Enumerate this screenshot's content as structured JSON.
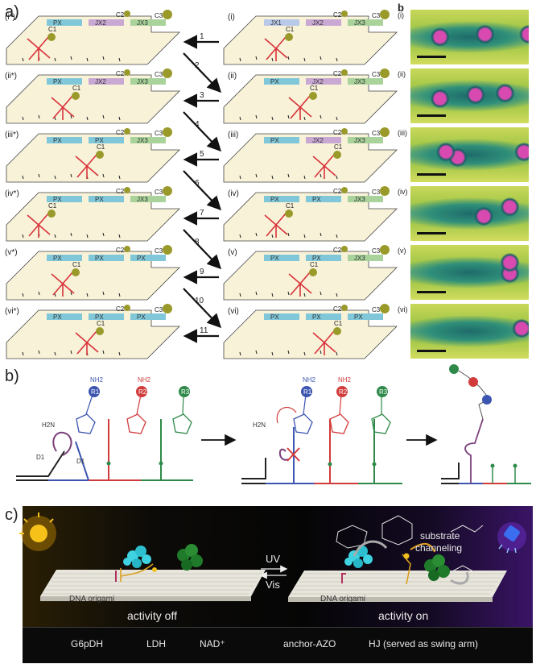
{
  "panel_letters": {
    "a": "a)",
    "b": "b",
    "b_chem": "b)",
    "c": "c)"
  },
  "left_states": [
    "(i*)",
    "(ii*)",
    "(iii*)",
    "(iv*)",
    "(v*)",
    "(vi*)"
  ],
  "right_states": [
    "(i)",
    "(ii)",
    "(iii)",
    "(iv)",
    "(v)",
    "(vi)"
  ],
  "arrow_numbers": [
    "1",
    "2",
    "3",
    "4",
    "5",
    "6",
    "7",
    "8",
    "9",
    "10",
    "11"
  ],
  "track_labels": {
    "left": [
      [
        "PX",
        "JX2",
        "JX3"
      ],
      [
        "PX",
        "JX2",
        "JX3"
      ],
      [
        "PX",
        "PX",
        "JX3"
      ],
      [
        "PX",
        "PX",
        "JX3"
      ],
      [
        "PX",
        "PX",
        "PX"
      ],
      [
        "PX",
        "PX",
        "PX"
      ]
    ],
    "right": [
      [
        "JX1",
        "JX2",
        "JX3"
      ],
      [
        "PX",
        "JX2",
        "JX3"
      ],
      [
        "PX",
        "JX2",
        "JX3"
      ],
      [
        "PX",
        "PX",
        "JX3"
      ],
      [
        "PX",
        "PX",
        "JX3"
      ],
      [
        "PX",
        "PX",
        "PX"
      ]
    ]
  },
  "cargo_labels": {
    "c1": "C1",
    "c2": "C2",
    "c3": "C3"
  },
  "afm_labels": [
    "(i)",
    "(ii)",
    "(iii)",
    "(iv)",
    "(v)",
    "(vi)"
  ],
  "chem": {
    "nh2": "NH2",
    "r1": "R1",
    "r2": "R2",
    "r3": "R3",
    "h2n": "H2N",
    "d1": "D1",
    "d1b": "D1"
  },
  "panel_c": {
    "uv": "UV",
    "vis": "Vis",
    "origami_left": "DNA origami",
    "origami_right": "DNA origami",
    "activity_off": "activity off",
    "activity_on": "activity on",
    "substrate": "substrate",
    "channeling": "channeling"
  },
  "legend": [
    {
      "icon": "g6pdh-icon",
      "label": "G6pDH"
    },
    {
      "icon": "ldh-icon",
      "label": "LDH"
    },
    {
      "icon": "nad-icon",
      "label": "NAD⁺"
    },
    {
      "icon": "anchor-azo-icon",
      "label": "anchor-AZO"
    },
    {
      "icon": "hj-icon",
      "label": "HJ (served as swing arm)"
    }
  ],
  "colors": {
    "px": "#7fc7d9",
    "jx2": "#c9a8d4",
    "jx3": "#a9d39a",
    "cargo": "#9a9a2a",
    "walker": "#d9323a",
    "board": "#f7f2d8"
  }
}
